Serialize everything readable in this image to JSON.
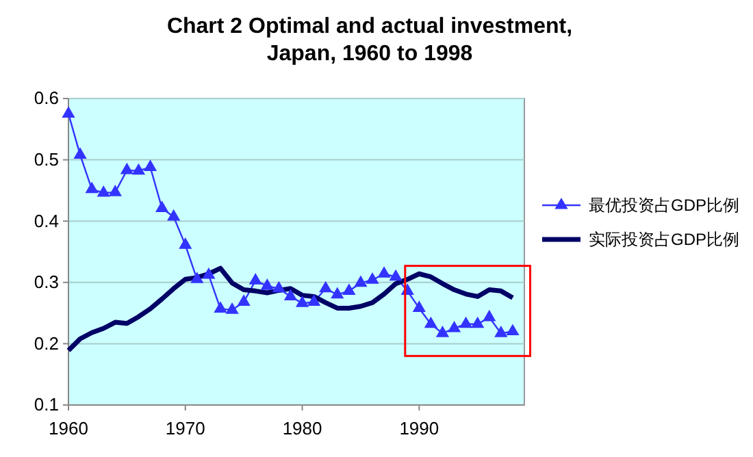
{
  "chart_data": {
    "type": "line",
    "title": "Chart 2 Optimal and actual investment, Japan, 1960 to 1998",
    "x": [
      1960,
      1961,
      1962,
      1963,
      1964,
      1965,
      1966,
      1967,
      1968,
      1969,
      1970,
      1971,
      1972,
      1973,
      1974,
      1975,
      1976,
      1977,
      1978,
      1979,
      1980,
      1981,
      1982,
      1983,
      1984,
      1985,
      1986,
      1987,
      1988,
      1989,
      1990,
      1991,
      1992,
      1993,
      1994,
      1995,
      1996,
      1997,
      1998
    ],
    "series": [
      {
        "name": "最优投资占GDP比例",
        "color": "#3333ff",
        "marker": "triangle",
        "values": [
          0.575,
          0.508,
          0.452,
          0.446,
          0.447,
          0.483,
          0.482,
          0.488,
          0.421,
          0.407,
          0.361,
          0.305,
          0.312,
          0.257,
          0.255,
          0.268,
          0.303,
          0.294,
          0.29,
          0.277,
          0.266,
          0.268,
          0.29,
          0.28,
          0.286,
          0.299,
          0.304,
          0.314,
          0.309,
          0.286,
          0.258,
          0.232,
          0.217,
          0.225,
          0.232,
          0.232,
          0.243,
          0.217,
          0.22
        ]
      },
      {
        "name": "实际投资占GDP比例",
        "color": "#000066",
        "marker": "none",
        "values": [
          0.189,
          0.208,
          0.218,
          0.225,
          0.235,
          0.233,
          0.244,
          0.257,
          0.273,
          0.29,
          0.305,
          0.308,
          0.314,
          0.323,
          0.299,
          0.288,
          0.286,
          0.283,
          0.287,
          0.29,
          0.279,
          0.277,
          0.267,
          0.258,
          0.258,
          0.261,
          0.267,
          0.281,
          0.298,
          0.305,
          0.314,
          0.309,
          0.298,
          0.288,
          0.281,
          0.277,
          0.288,
          0.286,
          0.275
        ]
      }
    ],
    "xlim": [
      1960,
      1999
    ],
    "xticks": [
      1960,
      1970,
      1980,
      1990
    ],
    "ylim": [
      0.1,
      0.6
    ],
    "yticks": [
      0.1,
      0.2,
      0.3,
      0.4,
      0.5,
      0.6
    ],
    "grid": "y",
    "legend": "right"
  }
}
